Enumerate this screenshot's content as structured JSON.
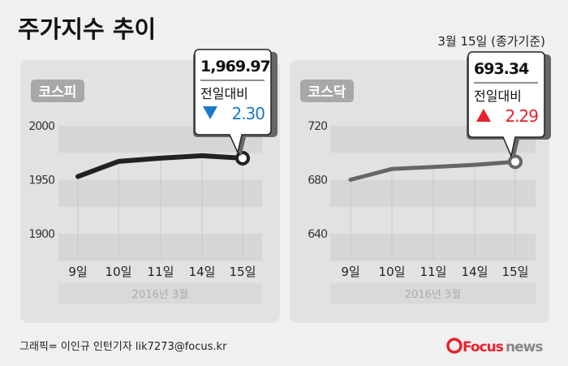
{
  "header": {
    "title": "주가지수 추이",
    "subtitle": "3월 15일 (종가기준)"
  },
  "footer": {
    "credit": "그래픽= 이인규 인턴기자 lik7273@focus.kr",
    "logo": "Focusnews"
  },
  "colors": {
    "down": "#1e78c8",
    "up": "#e8212e",
    "kospi_line": "#222222",
    "kosdaq_line": "#666666",
    "band": "#d6d6d6",
    "panel": "#e2e2e2"
  },
  "chart_data": [
    {
      "type": "line",
      "label": "코스피",
      "categories": [
        "9일",
        "10일",
        "11일",
        "14일",
        "15일"
      ],
      "xlabel": "2016년  3월",
      "values": [
        1953,
        1967,
        1970,
        1972.27,
        1969.97
      ],
      "yticks": [
        1900,
        1950,
        2000
      ],
      "ylim": [
        1875,
        2000
      ],
      "callout": {
        "value": "1,969.97",
        "label": "전일대비",
        "direction": "down",
        "icon": "triangle-down-icon",
        "change": "2.30"
      }
    },
    {
      "type": "line",
      "label": "코스닥",
      "categories": [
        "9일",
        "10일",
        "11일",
        "14일",
        "15일"
      ],
      "xlabel": "2016년  3월",
      "values": [
        680,
        688,
        689.5,
        691.05,
        693.34
      ],
      "yticks": [
        640,
        680,
        720
      ],
      "ylim": [
        620,
        720
      ],
      "callout": {
        "value": "693.34",
        "label": "전일대비",
        "direction": "up",
        "icon": "triangle-up-icon",
        "change": "2.29"
      }
    }
  ]
}
